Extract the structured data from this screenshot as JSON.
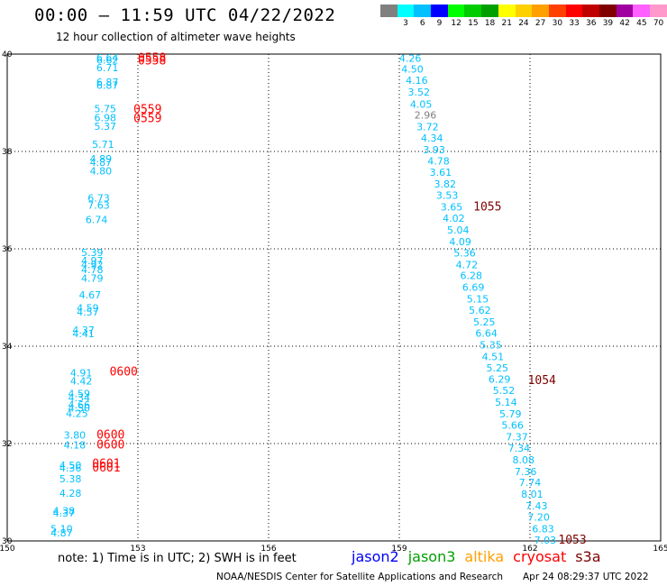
{
  "header": {
    "title": "00:00 — 11:59 UTC 04/22/2022",
    "subtitle": "12 hour collection of altimeter wave heights"
  },
  "legend": {
    "unit": "(ft)",
    "bins": [
      {
        "label": "",
        "color": "#808080"
      },
      {
        "label": "3",
        "color": "#00ffff"
      },
      {
        "label": "6",
        "color": "#00c0ff"
      },
      {
        "label": "9",
        "color": "#0000ff"
      },
      {
        "label": "12",
        "color": "#00ff00"
      },
      {
        "label": "15",
        "color": "#00cc00"
      },
      {
        "label": "18",
        "color": "#00a000"
      },
      {
        "label": "21",
        "color": "#ffff00"
      },
      {
        "label": "24",
        "color": "#ffd000"
      },
      {
        "label": "27",
        "color": "#ffa000"
      },
      {
        "label": "30",
        "color": "#ff4000"
      },
      {
        "label": "33",
        "color": "#ff0000"
      },
      {
        "label": "36",
        "color": "#c00000"
      },
      {
        "label": "39",
        "color": "#800000"
      },
      {
        "label": "42",
        "color": "#a000a0"
      },
      {
        "label": "45",
        "color": "#ff60ff"
      },
      {
        "label": "70",
        "color": "#ff99cc"
      },
      {
        "label": "",
        "color": "#000000"
      }
    ]
  },
  "note": "note: 1) Time is in UTC; 2) SWH is in feet",
  "missions": [
    {
      "name": "jason2",
      "color": "#0000ff"
    },
    {
      "name": "jason3",
      "color": "#00a000"
    },
    {
      "name": "altika",
      "color": "#ffa000"
    },
    {
      "name": "cryosat",
      "color": "#ff0000"
    },
    {
      "name": "s3a",
      "color": "#800000"
    }
  ],
  "footer": {
    "credit": "NOAA/NESDIS Center for Satellite Applications and Research",
    "stamp": "Apr 24 08:29:37 UTC 2022"
  },
  "map_data": {
    "lon_range": [
      150,
      165
    ],
    "lat_range": [
      30,
      40
    ],
    "x_ticks": [
      150,
      153,
      156,
      159,
      162,
      165
    ],
    "y_ticks": [
      30,
      32,
      34,
      36,
      38,
      40
    ],
    "x_tick_labels": [
      "150",
      "153",
      "156",
      "159",
      "162",
      "165"
    ],
    "y_tick_labels": [
      "30",
      "32",
      "34",
      "36",
      "38",
      "40"
    ],
    "grid": true,
    "points": [
      {
        "lon": 152.3,
        "lat": 39.93,
        "v": "6.64",
        "c": "#00c0ff"
      },
      {
        "lon": 152.3,
        "lat": 39.88,
        "v": "6.62",
        "c": "#00c0ff"
      },
      {
        "lon": 152.3,
        "lat": 39.72,
        "v": "6.71",
        "c": "#00c0ff"
      },
      {
        "lon": 152.3,
        "lat": 39.43,
        "v": "6.87",
        "c": "#00c0ff"
      },
      {
        "lon": 152.3,
        "lat": 39.36,
        "v": "6.87",
        "c": "#00c0ff"
      },
      {
        "lon": 152.25,
        "lat": 38.88,
        "v": "5.75",
        "c": "#00c0ff"
      },
      {
        "lon": 152.25,
        "lat": 38.69,
        "v": "6.98",
        "c": "#00c0ff"
      },
      {
        "lon": 152.25,
        "lat": 38.52,
        "v": "5.37",
        "c": "#00c0ff"
      },
      {
        "lon": 152.2,
        "lat": 38.15,
        "v": "5.71",
        "c": "#00c0ff"
      },
      {
        "lon": 152.15,
        "lat": 37.85,
        "v": "4.89",
        "c": "#00c0ff"
      },
      {
        "lon": 152.15,
        "lat": 37.78,
        "v": "4.87",
        "c": "#00c0ff"
      },
      {
        "lon": 152.15,
        "lat": 37.6,
        "v": "4.80",
        "c": "#00c0ff"
      },
      {
        "lon": 152.1,
        "lat": 37.05,
        "v": "6.73",
        "c": "#00c0ff"
      },
      {
        "lon": 152.1,
        "lat": 36.9,
        "v": "7.63",
        "c": "#00c0ff"
      },
      {
        "lon": 152.05,
        "lat": 36.6,
        "v": "6.74",
        "c": "#00c0ff"
      },
      {
        "lon": 151.95,
        "lat": 35.93,
        "v": "5.39",
        "c": "#00c0ff"
      },
      {
        "lon": 151.95,
        "lat": 35.76,
        "v": "4.97",
        "c": "#00c0ff"
      },
      {
        "lon": 151.95,
        "lat": 35.68,
        "v": "4.92",
        "c": "#00c0ff"
      },
      {
        "lon": 151.95,
        "lat": 35.57,
        "v": "4.78",
        "c": "#00c0ff"
      },
      {
        "lon": 151.95,
        "lat": 35.4,
        "v": "4.79",
        "c": "#00c0ff"
      },
      {
        "lon": 151.9,
        "lat": 35.06,
        "v": "4.67",
        "c": "#00c0ff"
      },
      {
        "lon": 151.85,
        "lat": 34.79,
        "v": "4.59",
        "c": "#00c0ff"
      },
      {
        "lon": 151.85,
        "lat": 34.7,
        "v": "4.57",
        "c": "#00c0ff"
      },
      {
        "lon": 151.75,
        "lat": 34.33,
        "v": "4.37",
        "c": "#00c0ff"
      },
      {
        "lon": 151.75,
        "lat": 34.26,
        "v": "4.41",
        "c": "#00c0ff"
      },
      {
        "lon": 151.7,
        "lat": 33.45,
        "v": "4.91",
        "c": "#00c0ff"
      },
      {
        "lon": 151.7,
        "lat": 33.29,
        "v": "4.42",
        "c": "#00c0ff"
      },
      {
        "lon": 151.65,
        "lat": 33.03,
        "v": "4.59",
        "c": "#00c0ff"
      },
      {
        "lon": 151.65,
        "lat": 32.94,
        "v": "4.34",
        "c": "#00c0ff"
      },
      {
        "lon": 151.65,
        "lat": 32.8,
        "v": "4.66",
        "c": "#00c0ff"
      },
      {
        "lon": 151.65,
        "lat": 32.73,
        "v": "4.50",
        "c": "#00c0ff"
      },
      {
        "lon": 151.6,
        "lat": 32.62,
        "v": "4.25",
        "c": "#00c0ff"
      },
      {
        "lon": 151.55,
        "lat": 32.18,
        "v": "3.80",
        "c": "#00c0ff"
      },
      {
        "lon": 151.55,
        "lat": 31.97,
        "v": "4.18",
        "c": "#00c0ff"
      },
      {
        "lon": 151.45,
        "lat": 31.56,
        "v": "4.50",
        "c": "#00c0ff"
      },
      {
        "lon": 151.45,
        "lat": 31.5,
        "v": "4.36",
        "c": "#00c0ff"
      },
      {
        "lon": 151.45,
        "lat": 31.28,
        "v": "5.38",
        "c": "#00c0ff"
      },
      {
        "lon": 151.45,
        "lat": 30.98,
        "v": "4.28",
        "c": "#00c0ff"
      },
      {
        "lon": 151.3,
        "lat": 30.62,
        "v": "4.38",
        "c": "#00c0ff"
      },
      {
        "lon": 151.3,
        "lat": 30.57,
        "v": "4.37",
        "c": "#00c0ff"
      },
      {
        "lon": 151.25,
        "lat": 30.25,
        "v": "5.10",
        "c": "#00c0ff"
      },
      {
        "lon": 151.25,
        "lat": 30.17,
        "v": "4.87",
        "c": "#00c0ff"
      },
      {
        "lon": 159.25,
        "lat": 39.92,
        "v": "4.26",
        "c": "#00c0ff"
      },
      {
        "lon": 159.3,
        "lat": 39.69,
        "v": "4.50",
        "c": "#00c0ff"
      },
      {
        "lon": 159.4,
        "lat": 39.46,
        "v": "4.16",
        "c": "#00c0ff"
      },
      {
        "lon": 159.45,
        "lat": 39.22,
        "v": "3.52",
        "c": "#00c0ff"
      },
      {
        "lon": 159.5,
        "lat": 38.97,
        "v": "4.05",
        "c": "#00c0ff"
      },
      {
        "lon": 159.6,
        "lat": 38.75,
        "v": "2.96",
        "c": "#808080"
      },
      {
        "lon": 159.65,
        "lat": 38.51,
        "v": "3.72",
        "c": "#00c0ff"
      },
      {
        "lon": 159.75,
        "lat": 38.28,
        "v": "4.34",
        "c": "#00c0ff"
      },
      {
        "lon": 159.8,
        "lat": 38.04,
        "v": "3.93",
        "c": "#00c0ff"
      },
      {
        "lon": 159.9,
        "lat": 37.81,
        "v": "4.78",
        "c": "#00c0ff"
      },
      {
        "lon": 159.95,
        "lat": 37.57,
        "v": "3.61",
        "c": "#00c0ff"
      },
      {
        "lon": 160.05,
        "lat": 37.33,
        "v": "3.82",
        "c": "#00c0ff"
      },
      {
        "lon": 160.1,
        "lat": 37.1,
        "v": "3.53",
        "c": "#00c0ff"
      },
      {
        "lon": 160.2,
        "lat": 36.86,
        "v": "3.65",
        "c": "#00c0ff"
      },
      {
        "lon": 160.25,
        "lat": 36.63,
        "v": "4.02",
        "c": "#00c0ff"
      },
      {
        "lon": 160.35,
        "lat": 36.39,
        "v": "5.04",
        "c": "#00c0ff"
      },
      {
        "lon": 160.4,
        "lat": 36.15,
        "v": "4.09",
        "c": "#00c0ff"
      },
      {
        "lon": 160.5,
        "lat": 35.92,
        "v": "5.36",
        "c": "#00c0ff"
      },
      {
        "lon": 160.55,
        "lat": 35.68,
        "v": "4.72",
        "c": "#00c0ff"
      },
      {
        "lon": 160.65,
        "lat": 35.45,
        "v": "6.28",
        "c": "#00c0ff"
      },
      {
        "lon": 160.7,
        "lat": 35.21,
        "v": "6.69",
        "c": "#00c0ff"
      },
      {
        "lon": 160.8,
        "lat": 34.97,
        "v": "5.15",
        "c": "#00c0ff"
      },
      {
        "lon": 160.85,
        "lat": 34.74,
        "v": "5.62",
        "c": "#00c0ff"
      },
      {
        "lon": 160.95,
        "lat": 34.5,
        "v": "5.25",
        "c": "#00c0ff"
      },
      {
        "lon": 161.0,
        "lat": 34.27,
        "v": "6.64",
        "c": "#00c0ff"
      },
      {
        "lon": 161.1,
        "lat": 34.03,
        "v": "5.35",
        "c": "#00c0ff"
      },
      {
        "lon": 161.15,
        "lat": 33.79,
        "v": "4.51",
        "c": "#00c0ff"
      },
      {
        "lon": 161.25,
        "lat": 33.56,
        "v": "5.25",
        "c": "#00c0ff"
      },
      {
        "lon": 161.3,
        "lat": 33.32,
        "v": "6.29",
        "c": "#00c0ff"
      },
      {
        "lon": 161.4,
        "lat": 33.09,
        "v": "5.52",
        "c": "#00c0ff"
      },
      {
        "lon": 161.45,
        "lat": 32.85,
        "v": "5.14",
        "c": "#00c0ff"
      },
      {
        "lon": 161.55,
        "lat": 32.61,
        "v": "5.79",
        "c": "#00c0ff"
      },
      {
        "lon": 161.6,
        "lat": 32.38,
        "v": "5.66",
        "c": "#00c0ff"
      },
      {
        "lon": 161.7,
        "lat": 32.14,
        "v": "7.37",
        "c": "#00c0ff"
      },
      {
        "lon": 161.75,
        "lat": 31.91,
        "v": "7.34",
        "c": "#00c0ff"
      },
      {
        "lon": 161.85,
        "lat": 31.67,
        "v": "8.08",
        "c": "#00c0ff"
      },
      {
        "lon": 161.9,
        "lat": 31.43,
        "v": "7.36",
        "c": "#00c0ff"
      },
      {
        "lon": 162.0,
        "lat": 31.2,
        "v": "7.74",
        "c": "#00c0ff"
      },
      {
        "lon": 162.05,
        "lat": 30.96,
        "v": "8.01",
        "c": "#00c0ff"
      },
      {
        "lon": 162.15,
        "lat": 30.72,
        "v": "7.43",
        "c": "#00c0ff"
      },
      {
        "lon": 162.2,
        "lat": 30.49,
        "v": "7.20",
        "c": "#00c0ff"
      },
      {
        "lon": 162.3,
        "lat": 30.25,
        "v": "6.83",
        "c": "#00c0ff"
      },
      {
        "lon": 162.35,
        "lat": 30.02,
        "v": "7.03",
        "c": "#00c0ff"
      }
    ],
    "time_labels": [
      {
        "lon": 153.0,
        "lat": 39.92,
        "t": "0558",
        "c": "#ff0000"
      },
      {
        "lon": 153.0,
        "lat": 39.86,
        "t": "0558",
        "c": "#ff0000"
      },
      {
        "lon": 152.9,
        "lat": 38.86,
        "t": "0559",
        "c": "#ff0000"
      },
      {
        "lon": 152.9,
        "lat": 38.68,
        "t": "0559",
        "c": "#ff0000"
      },
      {
        "lon": 152.35,
        "lat": 33.47,
        "t": "0600",
        "c": "#ff0000"
      },
      {
        "lon": 152.05,
        "lat": 32.18,
        "t": "0600",
        "c": "#ff0000"
      },
      {
        "lon": 152.05,
        "lat": 31.97,
        "t": "0600",
        "c": "#ff0000"
      },
      {
        "lon": 151.95,
        "lat": 31.58,
        "t": "0601",
        "c": "#ff0000"
      },
      {
        "lon": 151.95,
        "lat": 31.5,
        "t": "0601",
        "c": "#ff0000"
      },
      {
        "lon": 160.7,
        "lat": 36.86,
        "t": "1055",
        "c": "#800000"
      },
      {
        "lon": 161.95,
        "lat": 33.3,
        "t": "1054",
        "c": "#800000"
      },
      {
        "lon": 162.65,
        "lat": 30.02,
        "t": "1053",
        "c": "#800000"
      }
    ]
  }
}
